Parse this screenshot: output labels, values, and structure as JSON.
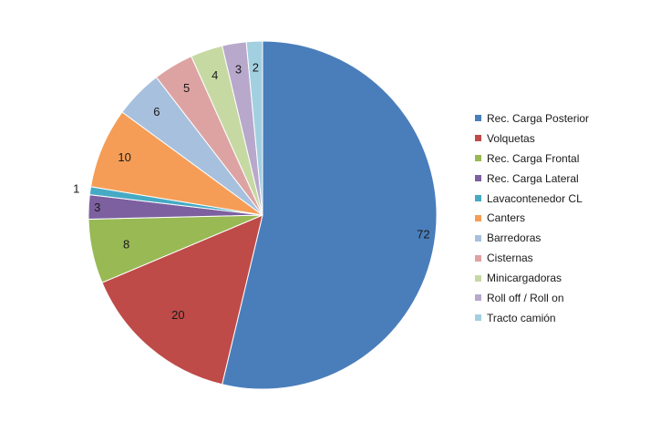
{
  "chart_data": {
    "type": "pie",
    "title": "",
    "legend_position": "right",
    "categories": [
      "Rec. Carga Posterior",
      "Volquetas",
      "Rec. Carga Frontal",
      "Rec. Carga Lateral",
      "Lavacontenedor CL",
      "Canters",
      "Barredoras",
      "Cisternas",
      "Minicargadoras",
      "Roll off / Roll on",
      "Tracto camión"
    ],
    "values": [
      72,
      20,
      8,
      3,
      1,
      10,
      6,
      5,
      4,
      3,
      2
    ],
    "data_labels": [
      "72",
      "20",
      "8",
      "3",
      "1",
      "10",
      "6",
      "5",
      "4",
      "3",
      "2"
    ],
    "colors": [
      "#4a7ebb",
      "#be4b48",
      "#98b954",
      "#7d60a0",
      "#46aac4",
      "#f59d56",
      "#a7c0de",
      "#dda3a2",
      "#c6d9a3",
      "#b8a8cc",
      "#a3d0e0"
    ]
  }
}
